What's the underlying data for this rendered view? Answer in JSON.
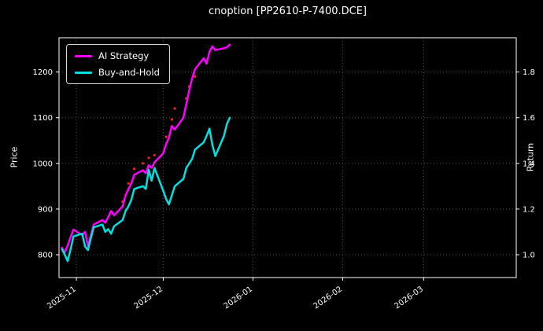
{
  "figure": {
    "title": "cnoption [PP2610-P-7400.DCE]",
    "background": "#000000",
    "text_color": "#ffffff"
  },
  "chart_data": {
    "type": "line",
    "title": "cnoption [PP2610-P-7400.DCE]",
    "xlabel": "",
    "ylabel_left": "Price",
    "ylabel_right": "Return",
    "grid": true,
    "grid_color": "#555555",
    "legend_position": "upper-left",
    "x_range": [
      "2025-10-26",
      "2026-04-02"
    ],
    "x_ticks": [
      {
        "date": "2025-11-01",
        "label": "2025-11"
      },
      {
        "date": "2025-12-01",
        "label": "2025-12"
      },
      {
        "date": "2026-01-01",
        "label": "2026-01"
      },
      {
        "date": "2026-02-01",
        "label": "2026-02"
      },
      {
        "date": "2026-03-01",
        "label": "2026-03"
      }
    ],
    "y_left": {
      "lim": [
        750,
        1275
      ],
      "ticks": [
        800,
        900,
        1000,
        1100,
        1200
      ]
    },
    "y_right": {
      "lim": [
        0.9,
        1.95
      ],
      "ticks": [
        1.0,
        1.2,
        1.4,
        1.6,
        1.8
      ]
    },
    "series": [
      {
        "name": "AI Strategy",
        "color": "#ff00ff",
        "axis": "left",
        "dates": [
          "2025-10-27",
          "2025-10-28",
          "2025-10-29",
          "2025-10-30",
          "2025-10-31",
          "2025-11-03",
          "2025-11-04",
          "2025-11-05",
          "2025-11-06",
          "2025-11-07",
          "2025-11-10",
          "2025-11-11",
          "2025-11-12",
          "2025-11-13",
          "2025-11-14",
          "2025-11-17",
          "2025-11-18",
          "2025-11-19",
          "2025-11-20",
          "2025-11-21",
          "2025-11-24",
          "2025-11-25",
          "2025-11-26",
          "2025-11-27",
          "2025-11-28",
          "2025-12-01",
          "2025-12-02",
          "2025-12-03",
          "2025-12-04",
          "2025-12-05",
          "2025-12-08",
          "2025-12-09",
          "2025-12-10",
          "2025-12-11",
          "2025-12-12",
          "2025-12-15",
          "2025-12-16",
          "2025-12-17",
          "2025-12-18",
          "2025-12-19",
          "2025-12-22",
          "2025-12-23",
          "2025-12-24"
        ],
        "values": [
          815,
          805,
          820,
          838,
          855,
          843,
          850,
          818,
          842,
          866,
          876,
          870,
          882,
          896,
          886,
          906,
          930,
          944,
          956,
          975,
          985,
          978,
          996,
          990,
          1002,
          1022,
          1042,
          1056,
          1082,
          1074,
          1100,
          1130,
          1160,
          1186,
          1206,
          1230,
          1218,
          1244,
          1256,
          1248,
          1252,
          1254,
          1260
        ]
      },
      {
        "name": "Buy-and-Hold",
        "color": "#00e0e0",
        "axis": "left",
        "dates": [
          "2025-10-27",
          "2025-10-28",
          "2025-10-29",
          "2025-10-30",
          "2025-10-31",
          "2025-11-03",
          "2025-11-04",
          "2025-11-05",
          "2025-11-06",
          "2025-11-07",
          "2025-11-10",
          "2025-11-11",
          "2025-11-12",
          "2025-11-13",
          "2025-11-14",
          "2025-11-17",
          "2025-11-18",
          "2025-11-19",
          "2025-11-20",
          "2025-11-21",
          "2025-11-24",
          "2025-11-25",
          "2025-11-26",
          "2025-11-27",
          "2025-11-28",
          "2025-12-01",
          "2025-12-02",
          "2025-12-03",
          "2025-12-04",
          "2025-12-05",
          "2025-12-08",
          "2025-12-09",
          "2025-12-10",
          "2025-12-11",
          "2025-12-12",
          "2025-12-15",
          "2025-12-16",
          "2025-12-17",
          "2025-12-18",
          "2025-12-19",
          "2025-12-22",
          "2025-12-23",
          "2025-12-24"
        ],
        "values": [
          812,
          800,
          786,
          812,
          840,
          846,
          818,
          810,
          836,
          860,
          866,
          850,
          856,
          846,
          862,
          876,
          896,
          906,
          920,
          944,
          950,
          944,
          986,
          962,
          990,
          940,
          922,
          910,
          930,
          950,
          966,
          990,
          1000,
          1010,
          1030,
          1046,
          1060,
          1076,
          1040,
          1016,
          1060,
          1086,
          1100
        ]
      }
    ],
    "signals": {
      "name": "trade-signal-markers",
      "color": "#ff2020",
      "points": [
        [
          "2025-11-17",
          916
        ],
        [
          "2025-11-19",
          956
        ],
        [
          "2025-11-21",
          988
        ],
        [
          "2025-11-24",
          1000
        ],
        [
          "2025-11-26",
          1012
        ],
        [
          "2025-11-28",
          1018
        ],
        [
          "2025-12-02",
          1058
        ],
        [
          "2025-12-04",
          1096
        ],
        [
          "2025-12-05",
          1120
        ],
        [
          "2025-12-09",
          1142
        ],
        [
          "2025-12-10",
          1168
        ],
        [
          "2025-12-12",
          1190
        ]
      ]
    }
  }
}
